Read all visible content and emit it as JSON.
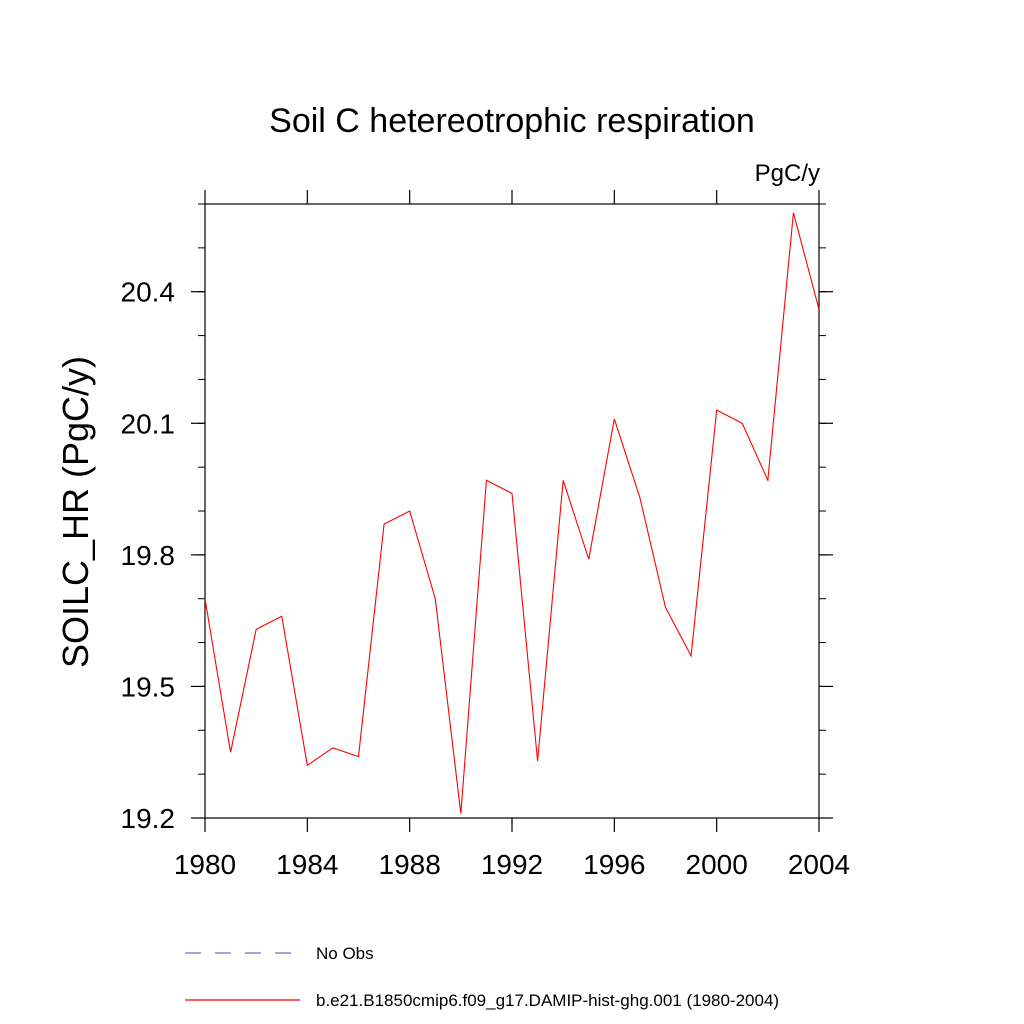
{
  "chart_data": {
    "type": "line",
    "title": "Soil C hetereotrophic respiration",
    "units_label": "PgC/y",
    "ylabel": "SOILC_HR  (PgC/y)",
    "xlabel": "",
    "xlim": [
      1980,
      2004
    ],
    "ylim": [
      19.2,
      20.6
    ],
    "x_ticks": [
      1980,
      1984,
      1988,
      1992,
      1996,
      2000,
      2004
    ],
    "y_ticks": [
      19.2,
      19.5,
      19.8,
      20.1,
      20.4
    ],
    "y_tick_labels": [
      "19.2",
      "19.5",
      "19.8",
      "20.1",
      "20.4"
    ],
    "x": [
      1980,
      1981,
      1982,
      1983,
      1984,
      1985,
      1986,
      1987,
      1988,
      1989,
      1990,
      1991,
      1992,
      1993,
      1994,
      1995,
      1996,
      1997,
      1998,
      1999,
      2000,
      2001,
      2002,
      2003,
      2004
    ],
    "series": [
      {
        "name": "b.e21.B1850cmip6.f09_g17.DAMIP-hist-ghg.001 (1980-2004)",
        "color": "#ff0000",
        "style": "solid",
        "values": [
          19.7,
          19.35,
          19.63,
          19.66,
          19.32,
          19.36,
          19.34,
          19.87,
          19.9,
          19.7,
          19.21,
          19.97,
          19.94,
          19.33,
          19.97,
          19.79,
          20.11,
          19.93,
          19.68,
          19.57,
          20.13,
          20.1,
          19.97,
          20.58,
          20.36
        ]
      }
    ],
    "legend": [
      {
        "label": "No Obs",
        "color": "#7070c0",
        "style": "dashed"
      },
      {
        "label": "b.e21.B1850cmip6.f09_g17.DAMIP-hist-ghg.001 (1980-2004)",
        "color": "#ff0000",
        "style": "solid"
      }
    ],
    "legend_position": "bottom",
    "grid": false
  }
}
